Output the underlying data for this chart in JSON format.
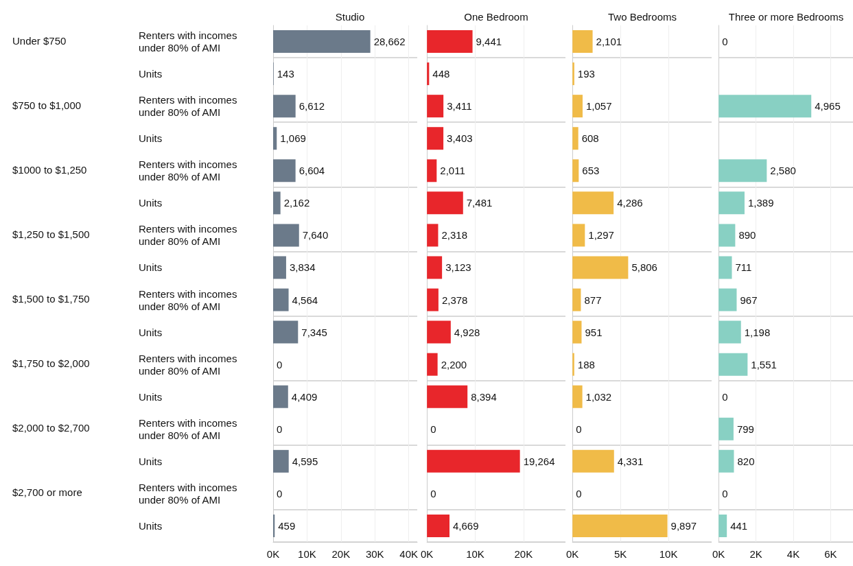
{
  "chart_data": [
    {
      "type": "bar",
      "orientation": "horizontal",
      "title": "Studio",
      "categories": [
        "Renters with incomes under 80% of AMI",
        "Units",
        "Renters with incomes under 80% of AMI",
        "Units",
        "Renters with incomes under 80% of AMI",
        "Units",
        "Renters with incomes under 80% of AMI",
        "Units",
        "Renters with incomes under 80% of AMI",
        "Units",
        "Renters with incomes under 80% of AMI",
        "Units",
        "Renters with incomes under 80% of AMI",
        "Units",
        "Renters with incomes under 80% of AMI",
        "Units"
      ],
      "values": [
        28662,
        143,
        6612,
        1069,
        6604,
        2162,
        7640,
        3834,
        4564,
        7345,
        0,
        4409,
        0,
        4595,
        0,
        459
      ],
      "value_labels": [
        "28,662",
        "143",
        "6,612",
        "1,069",
        "6,604",
        "2,162",
        "7,640",
        "3,834",
        "4,564",
        "7,345",
        "0",
        "4,409",
        "0",
        "4,595",
        "0",
        "459"
      ],
      "color": "#6b7a8a",
      "grid": "x",
      "xlim": [
        0,
        42500
      ],
      "xticks": [
        {
          "value": 0,
          "label": "0K"
        },
        {
          "value": 10000,
          "label": "10K"
        },
        {
          "value": 20000,
          "label": "20K"
        },
        {
          "value": 30000,
          "label": "30K"
        },
        {
          "value": 40000,
          "label": "40K"
        }
      ],
      "annotations": [
        "Under $750",
        "$750 to $1,000",
        "$1000 to $1,250",
        "$1,250 to $1,500",
        "$1,500 to $1,750",
        "$1,750 to $2,000",
        "$2,000 to $2,700",
        "$2,700 or more"
      ]
    },
    {
      "type": "bar",
      "orientation": "horizontal",
      "title": "One Bedroom",
      "categories": [
        "Renters with incomes under 80% of AMI",
        "Units",
        "Renters with incomes under 80% of AMI",
        "Units",
        "Renters with incomes under 80% of AMI",
        "Units",
        "Renters with incomes under 80% of AMI",
        "Units",
        "Renters with incomes under 80% of AMI",
        "Units",
        "Renters with incomes under 80% of AMI",
        "Units",
        "Renters with incomes under 80% of AMI",
        "Units",
        "Renters with incomes under 80% of AMI",
        "Units"
      ],
      "values": [
        9441,
        448,
        3411,
        3403,
        2011,
        7481,
        2318,
        3123,
        2378,
        4928,
        2200,
        8394,
        0,
        19264,
        0,
        4669
      ],
      "value_labels": [
        "9,441",
        "448",
        "3,411",
        "3,403",
        "2,011",
        "7,481",
        "2,318",
        "3,123",
        "2,378",
        "4,928",
        "2,200",
        "8,394",
        "0",
        "19,264",
        "0",
        "4,669"
      ],
      "color": "#e8262b",
      "grid": "x",
      "tick_labels": "x",
      "xlim": [
        0,
        28700
      ],
      "xticks": [
        {
          "value": 0,
          "label": "0K"
        },
        {
          "value": 10000,
          "label": "10K"
        },
        {
          "value": 20000,
          "label": "20K"
        }
      ]
    },
    {
      "type": "bar",
      "orientation": "horizontal",
      "title": "Two Bedrooms",
      "categories": [
        "Renters with incomes under 80% of AMI",
        "Units",
        "Renters with incomes under 80% of AMI",
        "Units",
        "Renters with incomes under 80% of AMI",
        "Units",
        "Renters with incomes under 80% of AMI",
        "Units",
        "Renters with incomes under 80% of AMI",
        "Units",
        "Renters with incomes under 80% of AMI",
        "Units",
        "Renters with incomes under 80% of AMI",
        "Units",
        "Renters with incomes under 80% of AMI",
        "Units"
      ],
      "values": [
        2101,
        193,
        1057,
        608,
        653,
        4286,
        1297,
        5806,
        877,
        951,
        188,
        1032,
        0,
        4331,
        0,
        9897
      ],
      "value_labels": [
        "2,101",
        "193",
        "1,057",
        "608",
        "653",
        "4,286",
        "1,297",
        "5,806",
        "877",
        "951",
        "188",
        "1,032",
        "0",
        "4,331",
        "0",
        "9,897"
      ],
      "color": "#f0bb48",
      "grid": "x",
      "tick_labels": "x",
      "xlim": [
        0,
        14500
      ],
      "xticks": [
        {
          "value": 0,
          "label": "0K"
        },
        {
          "value": 5000,
          "label": "5K"
        },
        {
          "value": 10000,
          "label": "10K"
        }
      ]
    },
    {
      "type": "bar",
      "orientation": "horizontal",
      "title": "Three or more Bedrooms",
      "categories": [
        "Renters with incomes under 80% of AMI",
        "Units",
        "Renters with incomes under 80% of AMI",
        "Units",
        "Renters with incomes under 80% of AMI",
        "Units",
        "Renters with incomes under 80% of AMI",
        "Units",
        "Renters with incomes under 80% of AMI",
        "Units",
        "Renters with incomes under 80% of AMI",
        "Units",
        "Renters with incomes under 80% of AMI",
        "Units",
        "Renters with incomes under 80% of AMI",
        "Units"
      ],
      "values": [
        0,
        null,
        4965,
        null,
        2580,
        1389,
        890,
        711,
        967,
        1198,
        1551,
        0,
        799,
        820,
        0,
        441
      ],
      "value_labels": [
        "0",
        null,
        "4,965",
        null,
        "2,580",
        "1,389",
        "890",
        "711",
        "967",
        "1,198",
        "1,551",
        "0",
        "799",
        "820",
        "0",
        "441"
      ],
      "color": "#88d0c3",
      "grid": "x",
      "tick_labels": "x",
      "xlim": [
        0,
        7200
      ],
      "xticks": [
        {
          "value": 0,
          "label": "0K"
        },
        {
          "value": 2000,
          "label": "2K"
        },
        {
          "value": 4000,
          "label": "4K"
        },
        {
          "value": 6000,
          "label": "6K"
        }
      ]
    }
  ]
}
